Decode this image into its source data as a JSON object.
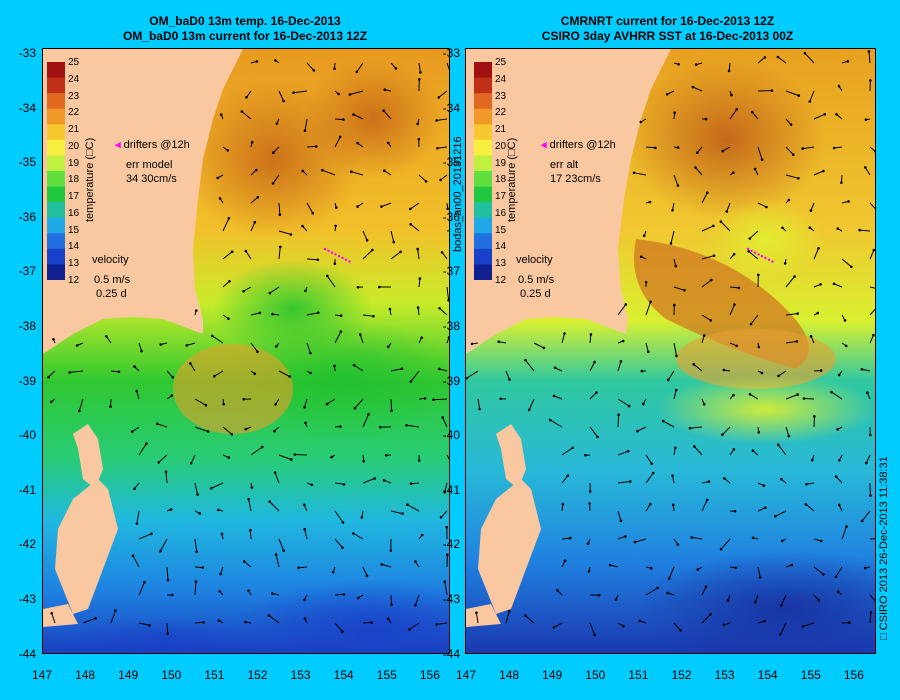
{
  "left_panel": {
    "title_line1": "OM_baD0 13m temp. 16-Dec-2013",
    "title_line2": "OM_baD0 13m current for 16-Dec-2013 12Z",
    "drifters_label": "drifters @12h",
    "err_label": "err model",
    "err_values": "34 30cm/s",
    "velocity_label": "velocity",
    "velocity_scale": "0.5 m/s",
    "velocity_time": "0.25 d"
  },
  "right_panel": {
    "title_line1": "CMRNRT current for 16-Dec-2013 12Z",
    "title_line2": "CSIRO 3day AVHRR SST at 16-Dec-2013 00Z",
    "drifters_label": "drifters @12h",
    "err_label": "err alt",
    "err_values": "17 23cm/s",
    "velocity_label": "velocity",
    "velocity_scale": "0.5 m/s",
    "velocity_time": "0.25 d"
  },
  "colorbar": {
    "label": "temperature (□C)",
    "ticks": [
      "25",
      "24",
      "23",
      "22",
      "21",
      "20",
      "19",
      "18",
      "17",
      "16",
      "15",
      "14",
      "13",
      "12"
    ],
    "range": [
      12,
      25
    ]
  },
  "latitude_ticks": [
    "-33",
    "-34",
    "-35",
    "-36",
    "-37",
    "-38",
    "-39",
    "-40",
    "-41",
    "-42",
    "-43",
    "-44"
  ],
  "longitude_ticks": [
    "147",
    "148",
    "149",
    "150",
    "151",
    "152",
    "153",
    "154",
    "155",
    "156"
  ],
  "side_label": "bodas_an00_20131216",
  "footer_label": "□ CSIRO 2013   26-Dec-2013 11:38:31",
  "colors": {
    "background": "#00ccff",
    "land": "#fac8a0",
    "drifters": "#ff00ff"
  }
}
